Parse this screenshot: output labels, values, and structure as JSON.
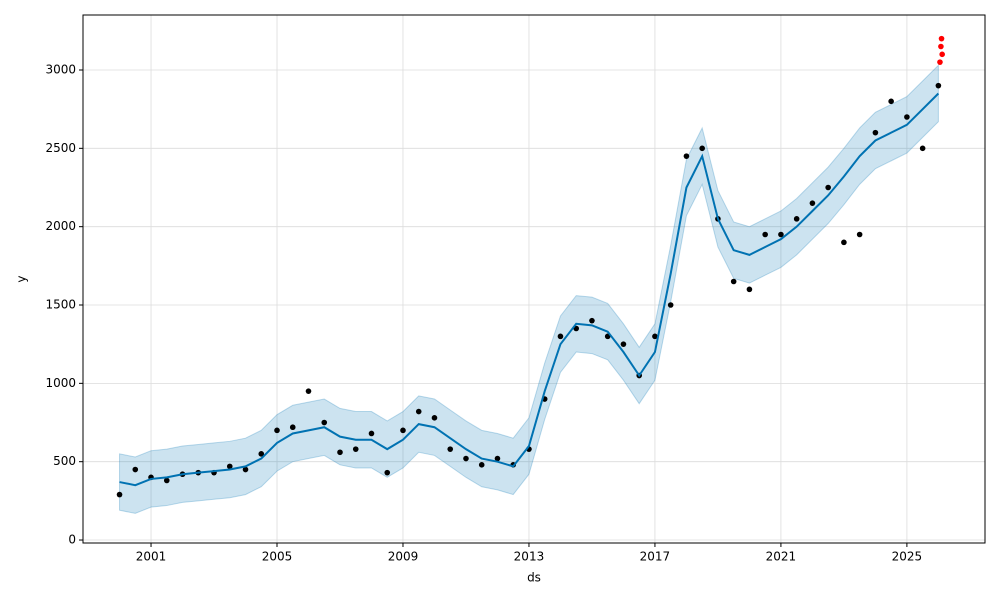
{
  "chart_data": {
    "type": "forecast",
    "xlabel": "ds",
    "ylabel": "y",
    "xlim": [
      1998.84,
      2027.48
    ],
    "ylim": [
      -19,
      3351
    ],
    "xticks": [
      2001,
      2005,
      2009,
      2013,
      2017,
      2021,
      2025
    ],
    "yticks": [
      0,
      500,
      1000,
      1500,
      2000,
      2500,
      3000
    ],
    "grid": true,
    "x": [
      2000.0,
      2000.5,
      2001.0,
      2001.5,
      2002.0,
      2002.5,
      2003.0,
      2003.5,
      2004.0,
      2004.5,
      2005.0,
      2005.5,
      2006.0,
      2006.5,
      2007.0,
      2007.5,
      2008.0,
      2008.5,
      2009.0,
      2009.5,
      2010.0,
      2010.5,
      2011.0,
      2011.5,
      2012.0,
      2012.5,
      2013.0,
      2013.5,
      2014.0,
      2014.5,
      2015.0,
      2015.5,
      2016.0,
      2016.5,
      2017.0,
      2017.5,
      2018.0,
      2018.5,
      2019.0,
      2019.5,
      2020.0,
      2020.5,
      2021.0,
      2021.5,
      2022.0,
      2022.5,
      2023.0,
      2023.5,
      2024.0,
      2024.5,
      2025.0,
      2025.5,
      2026.0
    ],
    "observed": {
      "color": "#000000",
      "values": [
        290,
        450,
        400,
        380,
        420,
        430,
        430,
        470,
        450,
        550,
        700,
        720,
        950,
        750,
        560,
        580,
        680,
        430,
        700,
        820,
        780,
        580,
        520,
        480,
        520,
        480,
        580,
        900,
        1300,
        1350,
        1400,
        1300,
        1250,
        1050,
        1300,
        1500,
        2450,
        2500,
        2050,
        1650,
        1600,
        1950,
        1950,
        2050,
        2150,
        2250,
        1900,
        1950,
        2600,
        2800,
        2700,
        2500,
        2900
      ]
    },
    "forecast": {
      "color": "#0072B2",
      "values": [
        370,
        350,
        390,
        400,
        420,
        430,
        440,
        450,
        470,
        520,
        620,
        680,
        700,
        720,
        660,
        640,
        640,
        580,
        640,
        740,
        720,
        650,
        580,
        520,
        500,
        470,
        600,
        950,
        1250,
        1380,
        1370,
        1330,
        1200,
        1050,
        1200,
        1700,
        2250,
        2450,
        2050,
        1850,
        1820,
        1870,
        1920,
        2000,
        2100,
        2200,
        2320,
        2450,
        2550,
        2600,
        2650,
        2750,
        2850
      ]
    },
    "band": {
      "color": "#0072B2",
      "lower": [
        190,
        170,
        210,
        220,
        240,
        250,
        260,
        270,
        290,
        340,
        440,
        500,
        520,
        540,
        480,
        460,
        460,
        400,
        460,
        560,
        540,
        470,
        400,
        340,
        320,
        290,
        420,
        770,
        1070,
        1200,
        1190,
        1150,
        1020,
        870,
        1020,
        1520,
        2070,
        2270,
        1870,
        1670,
        1640,
        1690,
        1740,
        1820,
        1920,
        2020,
        2140,
        2270,
        2370,
        2420,
        2470,
        2570,
        2670
      ],
      "upper": [
        550,
        530,
        570,
        580,
        600,
        610,
        620,
        630,
        650,
        700,
        800,
        860,
        880,
        900,
        840,
        820,
        820,
        760,
        820,
        920,
        900,
        830,
        760,
        700,
        680,
        650,
        780,
        1130,
        1430,
        1560,
        1550,
        1510,
        1380,
        1230,
        1380,
        1880,
        2430,
        2630,
        2230,
        2030,
        2000,
        2050,
        2100,
        2180,
        2280,
        2380,
        2500,
        2630,
        2730,
        2780,
        2830,
        2930,
        3030
      ]
    },
    "future": {
      "color": "#ff0000",
      "x": [
        2026.05,
        2026.08,
        2026.1,
        2026.12
      ],
      "values": [
        3050,
        3150,
        3200,
        3100
      ]
    }
  }
}
